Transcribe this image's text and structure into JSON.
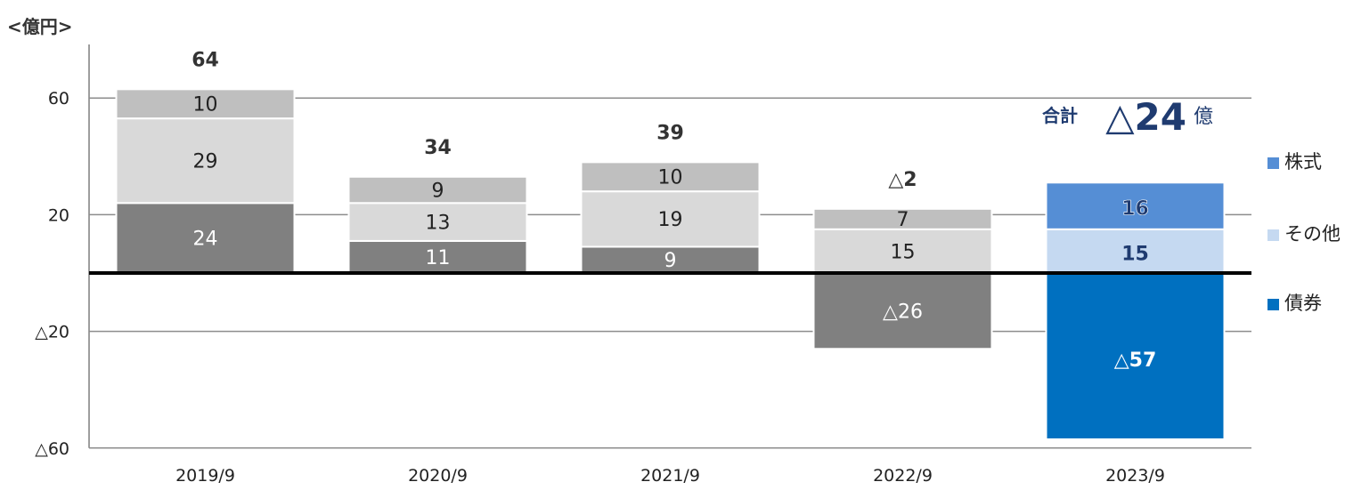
{
  "chart_data": {
    "type": "bar",
    "unit_label": "<億円>",
    "categories": [
      "2019/9",
      "2020/9",
      "2021/9",
      "2022/9",
      "2023/9"
    ],
    "series": [
      {
        "name": "債券",
        "values": [
          24,
          11,
          9,
          -26,
          -57
        ],
        "labels": [
          "24",
          "11",
          "9",
          "△26",
          "△57"
        ]
      },
      {
        "name": "その他",
        "values": [
          29,
          13,
          19,
          15,
          15
        ],
        "labels": [
          "29",
          "13",
          "19",
          "15",
          "15"
        ]
      },
      {
        "name": "株式",
        "values": [
          10,
          9,
          10,
          7,
          16
        ],
        "labels": [
          "10",
          "9",
          "10",
          "7",
          "16"
        ]
      }
    ],
    "totals": [
      "64",
      "34",
      "39",
      "△2",
      null
    ],
    "ylim": [
      -60,
      60
    ],
    "yticks": [
      {
        "value": 60,
        "label": "60"
      },
      {
        "value": 20,
        "label": "20"
      },
      {
        "value": -20,
        "label": "△20"
      },
      {
        "value": -60,
        "label": "△60"
      }
    ],
    "annotation": {
      "prefix": "合計",
      "value": "△24",
      "suffix": "億"
    },
    "legend": [
      "株式",
      "その他",
      "債券"
    ],
    "legend_position": "right",
    "colors": {
      "bond": "#808080",
      "other": "#d9d9d9",
      "stock": "#bfbfbf",
      "bond_hl": "#0070c0",
      "other_hl": "#c5d9f1",
      "stock_hl": "#558ed5",
      "legend_stock": "#558ed5",
      "legend_other": "#c5d9f1",
      "legend_bond": "#0070c0"
    }
  }
}
